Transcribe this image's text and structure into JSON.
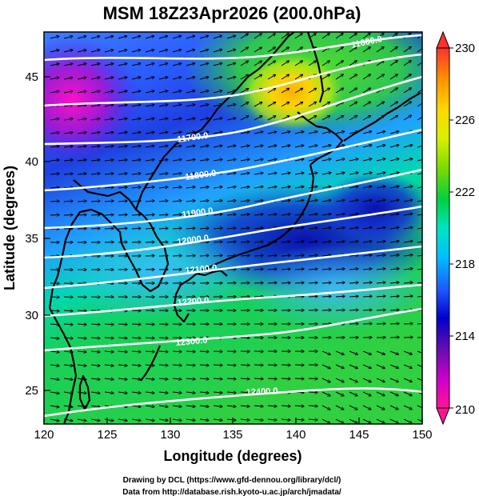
{
  "header": {
    "title": "MSM 18Z23Apr2026 (200.0hPa)"
  },
  "axes": {
    "xlabel": "Longitude (degrees)",
    "ylabel": "Latitude  (degrees)",
    "x_ticks": [
      "120",
      "125",
      "130",
      "135",
      "140",
      "145",
      "150"
    ],
    "y_ticks": [
      "25",
      "30",
      "35",
      "40",
      "45"
    ]
  },
  "colorbar": {
    "ticks": [
      "210",
      "214",
      "218",
      "222",
      "226",
      "230"
    ],
    "colors": [
      "#ff1493",
      "#cc00cc",
      "#6a0dad",
      "#0000cc",
      "#1e5aff",
      "#00bfff",
      "#00e5c0",
      "#00d040",
      "#7fdc00",
      "#d9f000",
      "#ffd700",
      "#ff8c00",
      "#ff3030"
    ]
  },
  "contours": {
    "labels": [
      "11600.0",
      "11700.0",
      "11800.0",
      "11900.0",
      "12000.0",
      "12100.0",
      "12200.0",
      "12300.0",
      "12400.0"
    ]
  },
  "footer": {
    "credit_line1": "Drawing by DCL (https://www.gfd-dennou.org/library/dcl/)",
    "credit_line2": "Data from http://database.rish.kyoto-u.ac.jp/arch/jmadata/"
  },
  "chart_data": {
    "type": "heatmap",
    "title": "MSM 18Z23Apr2026 (200.0hPa)",
    "xlabel": "Longitude (degrees)",
    "ylabel": "Latitude  (degrees)",
    "xlim": [
      120,
      150
    ],
    "ylim": [
      22.5,
      47.5
    ],
    "color_range": [
      210,
      230
    ],
    "overlays": [
      "temperature shading",
      "geopotential height contours (white)",
      "wind vectors (black arrows)",
      "coastlines"
    ]
  }
}
